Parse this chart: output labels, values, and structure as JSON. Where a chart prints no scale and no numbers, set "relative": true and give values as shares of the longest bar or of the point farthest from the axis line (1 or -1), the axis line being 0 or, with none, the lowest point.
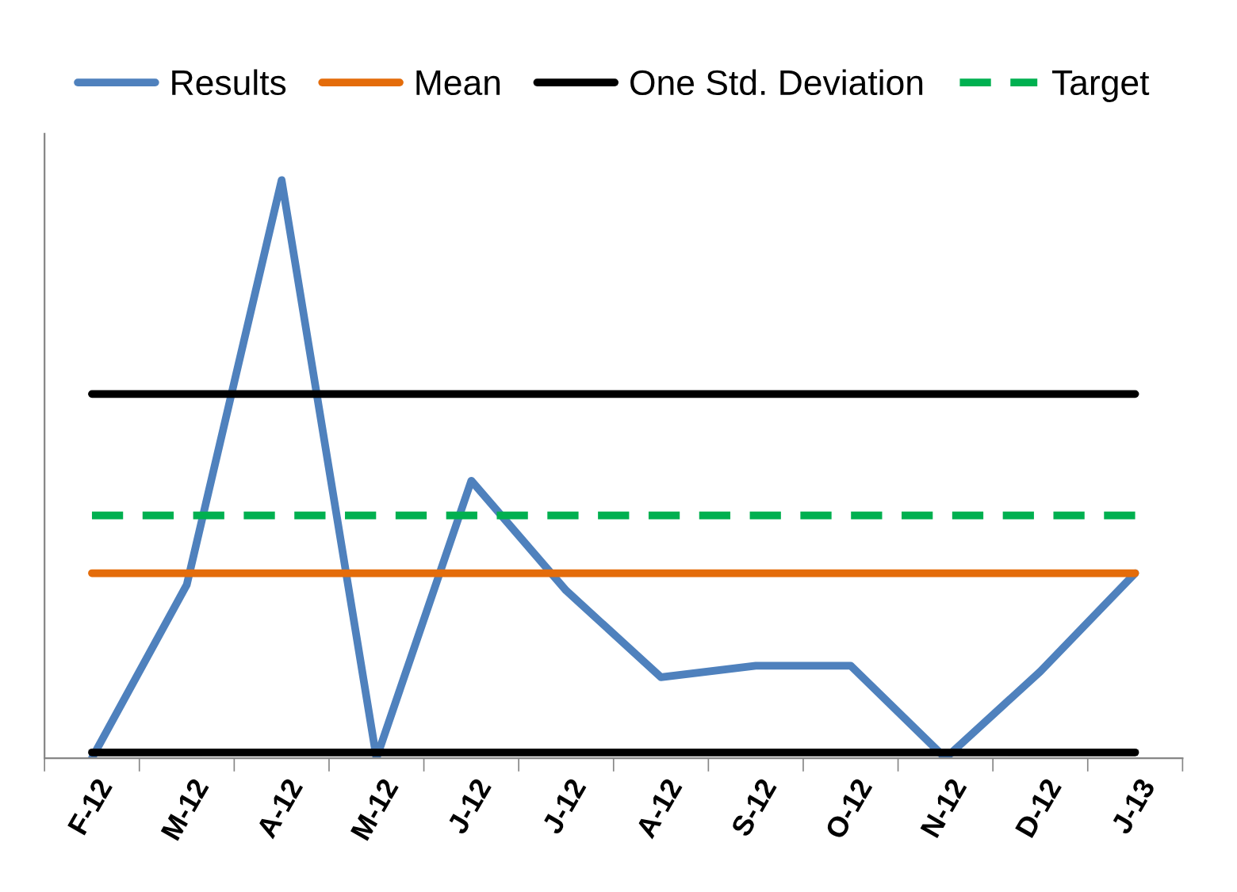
{
  "chart_data": {
    "type": "line",
    "relative": true,
    "categories": [
      "F-12",
      "M-12",
      "A-12",
      "M-12",
      "J-12",
      "J-12",
      "A-12",
      "S-12",
      "O-12",
      "N-12",
      "D-12",
      "J-13"
    ],
    "series": [
      {
        "name": "Results",
        "color": "#4f81bd",
        "values": [
          0,
          0.3,
          1.0,
          0,
          0.48,
          0.29,
          0.14,
          0.16,
          0.16,
          0,
          0.15,
          0.32
        ]
      },
      {
        "name": "Mean",
        "color": "#e46c0a",
        "values": [
          0.32,
          0.32,
          0.32,
          0.32,
          0.32,
          0.32,
          0.32,
          0.32,
          0.32,
          0.32,
          0.32,
          0.32
        ]
      },
      {
        "name": "One Std. Deviation",
        "color": "#000000",
        "values": [
          0.63,
          0.63,
          0.63,
          0.63,
          0.63,
          0.63,
          0.63,
          0.63,
          0.63,
          0.63,
          0.63,
          0.63
        ]
      },
      {
        "color": "#000000",
        "values": [
          0.01,
          0.01,
          0.01,
          0.01,
          0.01,
          0.01,
          0.01,
          0.01,
          0.01,
          0.01,
          0.01,
          0.01
        ]
      },
      {
        "name": "Target",
        "color": "#00b050",
        "line_style": "dashed",
        "values": [
          0.42,
          0.42,
          0.42,
          0.42,
          0.42,
          0.42,
          0.42,
          0.42,
          0.42,
          0.42,
          0.42,
          0.42
        ]
      }
    ],
    "legend": "top",
    "grid": false
  }
}
